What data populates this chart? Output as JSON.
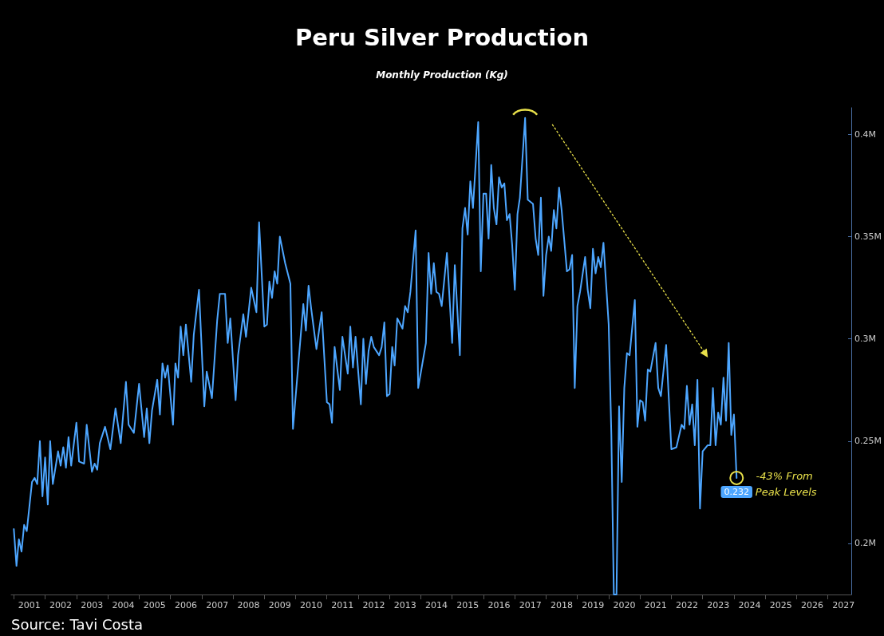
{
  "chart_data": {
    "type": "line",
    "title": "Peru Silver Production",
    "subtitle": "Monthly Production (Kg)",
    "annotations": [
      "Source: Tavi Costa",
      {
        "text": "-43% From Peak Levels",
        "x": "2024-02",
        "y": 0.232
      }
    ],
    "xlim": [
      "2000-12",
      "2027-10"
    ],
    "xticks": [
      {
        "value": "2001-01",
        "label": null
      },
      {
        "value": "2001-07",
        "label": "2001"
      },
      {
        "value": "2002-01",
        "label": null
      },
      {
        "value": "2002-07",
        "label": "2002"
      },
      {
        "value": "2003-01",
        "label": null
      },
      {
        "value": "2003-07",
        "label": "2003"
      },
      {
        "value": "2004-01",
        "label": null
      },
      {
        "value": "2004-07",
        "label": "2004"
      },
      {
        "value": "2005-01",
        "label": null
      },
      {
        "value": "2005-07",
        "label": "2005"
      },
      {
        "value": "2006-01",
        "label": null
      },
      {
        "value": "2006-07",
        "label": "2006"
      },
      {
        "value": "2007-01",
        "label": null
      },
      {
        "value": "2007-07",
        "label": "2007"
      },
      {
        "value": "2008-01",
        "label": null
      },
      {
        "value": "2008-07",
        "label": "2008"
      },
      {
        "value": "2009-01",
        "label": null
      },
      {
        "value": "2009-07",
        "label": "2009"
      },
      {
        "value": "2010-01",
        "label": null
      },
      {
        "value": "2010-07",
        "label": "2010"
      },
      {
        "value": "2011-01",
        "label": null
      },
      {
        "value": "2011-07",
        "label": "2011"
      },
      {
        "value": "2012-01",
        "label": null
      },
      {
        "value": "2012-07",
        "label": "2012"
      },
      {
        "value": "2013-01",
        "label": null
      },
      {
        "value": "2013-07",
        "label": "2013"
      },
      {
        "value": "2014-01",
        "label": null
      },
      {
        "value": "2014-07",
        "label": "2014"
      },
      {
        "value": "2015-01",
        "label": null
      },
      {
        "value": "2015-07",
        "label": "2015"
      },
      {
        "value": "2016-01",
        "label": null
      },
      {
        "value": "2016-07",
        "label": "2016"
      },
      {
        "value": "2017-01",
        "label": null
      },
      {
        "value": "2017-07",
        "label": "2017"
      },
      {
        "value": "2018-01",
        "label": null
      },
      {
        "value": "2018-07",
        "label": "2018"
      },
      {
        "value": "2019-01",
        "label": null
      },
      {
        "value": "2019-07",
        "label": "2019"
      },
      {
        "value": "2020-01",
        "label": null
      },
      {
        "value": "2020-07",
        "label": "2020"
      },
      {
        "value": "2021-01",
        "label": null
      },
      {
        "value": "2021-07",
        "label": "2021"
      },
      {
        "value": "2022-01",
        "label": null
      },
      {
        "value": "2022-07",
        "label": "2022"
      },
      {
        "value": "2023-01",
        "label": null
      },
      {
        "value": "2023-07",
        "label": "2023"
      },
      {
        "value": "2024-01",
        "label": null
      },
      {
        "value": "2024-07",
        "label": "2024"
      },
      {
        "value": "2025-01",
        "label": null
      },
      {
        "value": "2025-07",
        "label": "2025"
      },
      {
        "value": "2026-01",
        "label": null
      },
      {
        "value": "2026-07",
        "label": "2026"
      },
      {
        "value": "2027-01",
        "label": null
      },
      {
        "value": "2027-07",
        "label": "2027"
      }
    ],
    "ylim": [
      0.175,
      0.413
    ],
    "yticks": [
      {
        "value": 0.2,
        "label": "0.2M"
      },
      {
        "value": 0.25,
        "label": "0.25M"
      },
      {
        "value": 0.3,
        "label": "0.3M"
      },
      {
        "value": 0.35,
        "label": "0.35M"
      },
      {
        "value": 0.4,
        "label": "0.4M"
      }
    ],
    "marker": "none",
    "line_style": "solid",
    "x": [
      "2001-01",
      "2001-02",
      "2001-03",
      "2001-04",
      "2001-05",
      "2001-06",
      "2001-08",
      "2001-09",
      "2001-10",
      "2001-11",
      "2001-12",
      "2002-01",
      "2002-02",
      "2002-03",
      "2002-04",
      "2002-06",
      "2002-07",
      "2002-08",
      "2002-09",
      "2002-10",
      "2002-11",
      "2003-01",
      "2003-02",
      "2003-04",
      "2003-05",
      "2003-07",
      "2003-08",
      "2003-09",
      "2003-10",
      "2003-12",
      "2004-02",
      "2004-04",
      "2004-06",
      "2004-08",
      "2004-09",
      "2004-11",
      "2005-01",
      "2005-03",
      "2005-04",
      "2005-05",
      "2005-06",
      "2005-08",
      "2005-09",
      "2005-10",
      "2005-11",
      "2005-12",
      "2006-02",
      "2006-03",
      "2006-04",
      "2006-05",
      "2006-06",
      "2006-07",
      "2006-09",
      "2006-10",
      "2006-12",
      "2007-02",
      "2007-03",
      "2007-05",
      "2007-07",
      "2007-08",
      "2007-10",
      "2007-11",
      "2007-12",
      "2008-02",
      "2008-03",
      "2008-05",
      "2008-06",
      "2008-08",
      "2008-10",
      "2008-11",
      "2009-01",
      "2009-02",
      "2009-03",
      "2009-04",
      "2009-05",
      "2009-06",
      "2009-07",
      "2009-09",
      "2009-11",
      "2009-12",
      "2010-04",
      "2010-05",
      "2010-06",
      "2010-07",
      "2010-09",
      "2010-10",
      "2010-11",
      "2011-01",
      "2011-02",
      "2011-03",
      "2011-04",
      "2011-06",
      "2011-07",
      "2011-09",
      "2011-10",
      "2011-11",
      "2011-12",
      "2012-01",
      "2012-02",
      "2012-03",
      "2012-04",
      "2012-05",
      "2012-06",
      "2012-07",
      "2012-09",
      "2012-10",
      "2012-11",
      "2012-12",
      "2013-01",
      "2013-02",
      "2013-03",
      "2013-04",
      "2013-06",
      "2013-07",
      "2013-08",
      "2013-09",
      "2013-11",
      "2013-12",
      "2014-03",
      "2014-04",
      "2014-05",
      "2014-06",
      "2014-07",
      "2014-08",
      "2014-09",
      "2014-11",
      "2015-01",
      "2015-02",
      "2015-04",
      "2015-05",
      "2015-06",
      "2015-07",
      "2015-08",
      "2015-09",
      "2015-11",
      "2015-12",
      "2016-01",
      "2016-02",
      "2016-03",
      "2016-04",
      "2016-05",
      "2016-06",
      "2016-07",
      "2016-08",
      "2016-09",
      "2016-10",
      "2016-11",
      "2016-12",
      "2017-01",
      "2017-02",
      "2017-03",
      "2017-05",
      "2017-06",
      "2017-08",
      "2017-09",
      "2017-10",
      "2017-11",
      "2017-12",
      "2018-01",
      "2018-02",
      "2018-03",
      "2018-04",
      "2018-05",
      "2018-06",
      "2018-07",
      "2018-09",
      "2018-10",
      "2018-11",
      "2018-12",
      "2019-01",
      "2019-02",
      "2019-04",
      "2019-05",
      "2019-06",
      "2019-07",
      "2019-08",
      "2019-09",
      "2019-10",
      "2019-11",
      "2020-01",
      "2020-02",
      "2020-03",
      "2020-04",
      "2020-05",
      "2020-06",
      "2020-07",
      "2020-08",
      "2020-09",
      "2020-11",
      "2020-12",
      "2021-01",
      "2021-02",
      "2021-03",
      "2021-04",
      "2021-05",
      "2021-07",
      "2021-08",
      "2021-09",
      "2021-11",
      "2022-01",
      "2022-03",
      "2022-05",
      "2022-06",
      "2022-07",
      "2022-08",
      "2022-09",
      "2022-10",
      "2022-11",
      "2022-12",
      "2023-01",
      "2023-03",
      "2023-04",
      "2023-05",
      "2023-06",
      "2023-07",
      "2023-08",
      "2023-09",
      "2023-10",
      "2023-11",
      "2023-12",
      "2024-01",
      "2024-02"
    ],
    "series": [
      {
        "color": "#4da6ff",
        "values": [
          0.207,
          0.189,
          0.202,
          0.196,
          0.209,
          0.206,
          0.23,
          0.232,
          0.229,
          0.25,
          0.223,
          0.242,
          0.219,
          0.25,
          0.229,
          0.245,
          0.238,
          0.247,
          0.237,
          0.252,
          0.238,
          0.259,
          0.24,
          0.239,
          0.258,
          0.235,
          0.239,
          0.236,
          0.249,
          0.257,
          0.246,
          0.266,
          0.249,
          0.279,
          0.258,
          0.254,
          0.278,
          0.252,
          0.266,
          0.249,
          0.265,
          0.28,
          0.263,
          0.288,
          0.281,
          0.287,
          0.258,
          0.288,
          0.281,
          0.306,
          0.292,
          0.307,
          0.279,
          0.302,
          0.324,
          0.267,
          0.284,
          0.271,
          0.309,
          0.322,
          0.322,
          0.298,
          0.31,
          0.27,
          0.292,
          0.312,
          0.301,
          0.325,
          0.313,
          0.357,
          0.306,
          0.307,
          0.328,
          0.32,
          0.333,
          0.327,
          0.35,
          0.337,
          0.327,
          0.256,
          0.317,
          0.304,
          0.326,
          0.315,
          0.295,
          0.304,
          0.313,
          0.269,
          0.268,
          0.259,
          0.296,
          0.275,
          0.301,
          0.283,
          0.306,
          0.286,
          0.301,
          0.284,
          0.268,
          0.3,
          0.278,
          0.294,
          0.301,
          0.296,
          0.292,
          0.296,
          0.308,
          0.272,
          0.273,
          0.296,
          0.287,
          0.31,
          0.305,
          0.316,
          0.313,
          0.323,
          0.353,
          0.276,
          0.298,
          0.342,
          0.322,
          0.337,
          0.323,
          0.322,
          0.316,
          0.342,
          0.298,
          0.336,
          0.292,
          0.354,
          0.364,
          0.351,
          0.377,
          0.364,
          0.406,
          0.333,
          0.371,
          0.371,
          0.349,
          0.385,
          0.364,
          0.356,
          0.379,
          0.374,
          0.376,
          0.358,
          0.361,
          0.346,
          0.324,
          0.361,
          0.369,
          0.408,
          0.368,
          0.366,
          0.349,
          0.341,
          0.369,
          0.321,
          0.341,
          0.35,
          0.343,
          0.363,
          0.354,
          0.374,
          0.363,
          0.333,
          0.334,
          0.341,
          0.276,
          0.316,
          0.323,
          0.34,
          0.324,
          0.315,
          0.344,
          0.332,
          0.34,
          0.335,
          0.347,
          0.307,
          0.253,
          0.175,
          0.175,
          0.267,
          0.23,
          0.276,
          0.293,
          0.292,
          0.319,
          0.257,
          0.27,
          0.269,
          0.26,
          0.285,
          0.284,
          0.298,
          0.276,
          0.272,
          0.297,
          0.246,
          0.247,
          0.258,
          0.256,
          0.277,
          0.258,
          0.268,
          0.248,
          0.28,
          0.217,
          0.245,
          0.248,
          0.248,
          0.276,
          0.248,
          0.264,
          0.258,
          0.281,
          0.26,
          0.298,
          0.253,
          0.263,
          0.232
        ],
        "value_labels": [
          null,
          null,
          null,
          null,
          null,
          null,
          null,
          null,
          null,
          null,
          null,
          null,
          null,
          null,
          null,
          null,
          null,
          null,
          null,
          null,
          null,
          null,
          null,
          null,
          null,
          null,
          null,
          null,
          null,
          null,
          null,
          null,
          null,
          null,
          null,
          null,
          null,
          null,
          null,
          null,
          null,
          null,
          null,
          null,
          null,
          null,
          null,
          null,
          null,
          null,
          null,
          null,
          null,
          null,
          null,
          null,
          null,
          null,
          null,
          null,
          null,
          null,
          null,
          null,
          null,
          null,
          null,
          null,
          null,
          null,
          null,
          null,
          null,
          null,
          null,
          null,
          null,
          null,
          null,
          null,
          null,
          null,
          null,
          null,
          null,
          null,
          null,
          null,
          null,
          null,
          null,
          null,
          null,
          null,
          null,
          null,
          null,
          null,
          null,
          null,
          null,
          null,
          null,
          null,
          null,
          null,
          null,
          null,
          null,
          null,
          null,
          null,
          null,
          null,
          null,
          null,
          null,
          null,
          null,
          null,
          null,
          null,
          null,
          null,
          null,
          null,
          null,
          null,
          null,
          null,
          null,
          null,
          null,
          null,
          null,
          null,
          null,
          null,
          null,
          null,
          null,
          null,
          null,
          null,
          null,
          null,
          null,
          null,
          null,
          null,
          null,
          null,
          null,
          null,
          null,
          null,
          null,
          null,
          null,
          null,
          null,
          null,
          null,
          null,
          null,
          null,
          null,
          null,
          null,
          null,
          null,
          null,
          null,
          null,
          null,
          null,
          null,
          null,
          null,
          null,
          null,
          null,
          null,
          null,
          null,
          null,
          null,
          null,
          null,
          null,
          null,
          null,
          null,
          null,
          null,
          null,
          null,
          null,
          null,
          null,
          null,
          null,
          null,
          null,
          null,
          null,
          null,
          null,
          null,
          null,
          null,
          null,
          null,
          null,
          null,
          null,
          null,
          null,
          null,
          null,
          null,
          "0.232"
        ]
      }
    ]
  }
}
